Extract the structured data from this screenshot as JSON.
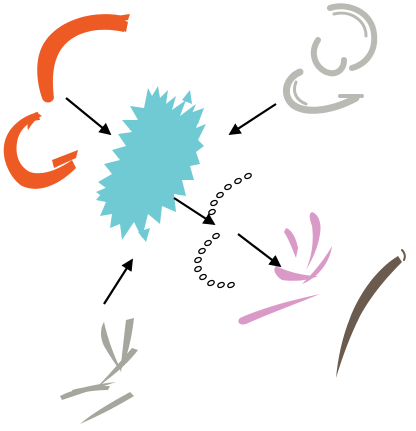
{
  "figure": {
    "background": "#ffffff",
    "colors": {
      "orange": "#ee5a24",
      "cyan": "#6fcad4",
      "grey": "#b9bab3",
      "grey_dark": "#a5a69e",
      "pink": "#d99ac8",
      "brown": "#6b5a4e",
      "arrow": "#000000"
    },
    "elements": [
      {
        "name": "orange-brush-strokes",
        "color": "orange"
      },
      {
        "name": "cyan-brush-blob",
        "color": "cyan"
      },
      {
        "name": "grey-brush-curls",
        "color": "grey"
      },
      {
        "name": "dotted-arc",
        "color": "arrow"
      },
      {
        "name": "pink-brush-strokes",
        "color": "pink"
      },
      {
        "name": "brown-brush-stroke",
        "color": "brown"
      },
      {
        "name": "grey-brush-slashes",
        "color": "grey_dark"
      }
    ],
    "arrows": [
      {
        "name": "arrow-orange-to-cyan",
        "from": "orange-brush-strokes",
        "to": "cyan-brush-blob"
      },
      {
        "name": "arrow-grey-curls-to-cyan",
        "from": "grey-brush-curls",
        "to": "cyan-brush-blob"
      },
      {
        "name": "arrow-grey-slashes-to-cyan",
        "from": "grey-brush-slashes",
        "to": "cyan-brush-blob"
      },
      {
        "name": "arrow-cyan-to-dotted-arc",
        "from": "cyan-brush-blob",
        "to": "dotted-arc"
      },
      {
        "name": "arrow-dotted-arc-to-pink",
        "from": "dotted-arc",
        "to": "pink-brush-strokes"
      }
    ]
  }
}
